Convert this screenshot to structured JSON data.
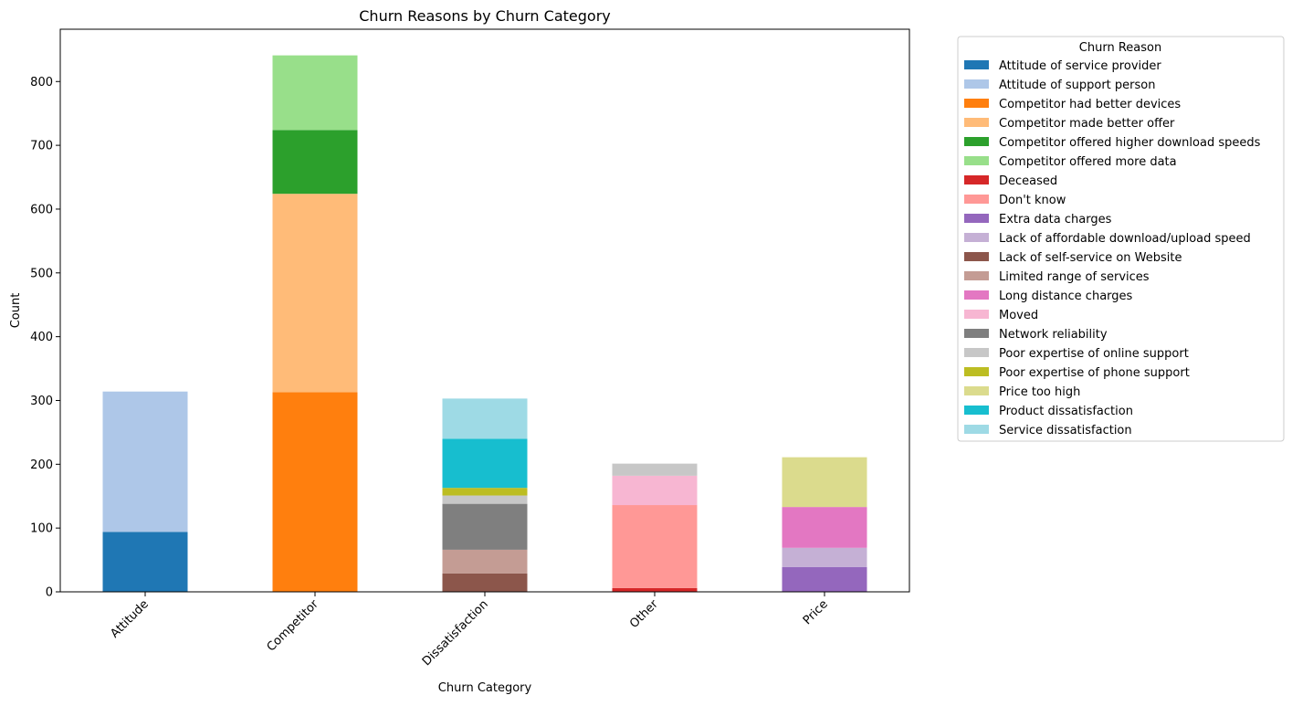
{
  "chart_data": {
    "type": "bar",
    "stacked": true,
    "title": "Churn Reasons by Churn Category",
    "xlabel": "Churn Category",
    "ylabel": "Count",
    "ylim": [
      0,
      882
    ],
    "yticks": [
      0,
      100,
      200,
      300,
      400,
      500,
      600,
      700,
      800
    ],
    "categories": [
      "Attitude",
      "Competitor",
      "Dissatisfaction",
      "Other",
      "Price"
    ],
    "legend": {
      "title": "Churn Reason",
      "placement": "outside-right"
    },
    "grid": false,
    "series": [
      {
        "name": "Attitude of service provider",
        "color": "#1f77b4",
        "values": [
          94,
          0,
          0,
          0,
          0
        ]
      },
      {
        "name": "Attitude of support person",
        "color": "#aec7e8",
        "values": [
          220,
          0,
          0,
          0,
          0
        ]
      },
      {
        "name": "Competitor had better devices",
        "color": "#ff7f0e",
        "values": [
          0,
          313,
          0,
          0,
          0
        ]
      },
      {
        "name": "Competitor made better offer",
        "color": "#ffbb78",
        "values": [
          0,
          311,
          0,
          0,
          0
        ]
      },
      {
        "name": "Competitor offered higher download speeds",
        "color": "#2ca02c",
        "values": [
          0,
          100,
          0,
          0,
          0
        ]
      },
      {
        "name": "Competitor offered more data",
        "color": "#98df8a",
        "values": [
          0,
          117,
          0,
          0,
          0
        ]
      },
      {
        "name": "Deceased",
        "color": "#d62728",
        "values": [
          0,
          0,
          0,
          6,
          0
        ]
      },
      {
        "name": "Don't know",
        "color": "#ff9896",
        "values": [
          0,
          0,
          0,
          130,
          0
        ]
      },
      {
        "name": "Extra data charges",
        "color": "#9467bd",
        "values": [
          0,
          0,
          0,
          0,
          39
        ]
      },
      {
        "name": "Lack of affordable download/upload speed",
        "color": "#c5b0d5",
        "values": [
          0,
          0,
          0,
          0,
          30
        ]
      },
      {
        "name": "Lack of self-service on Website",
        "color": "#8c564b",
        "values": [
          0,
          0,
          29,
          0,
          0
        ]
      },
      {
        "name": "Limited range of services",
        "color": "#c49c94",
        "values": [
          0,
          0,
          37,
          0,
          0
        ]
      },
      {
        "name": "Long distance charges",
        "color": "#e377c2",
        "values": [
          0,
          0,
          0,
          0,
          64
        ]
      },
      {
        "name": "Moved",
        "color": "#f7b6d2",
        "values": [
          0,
          0,
          0,
          46,
          0
        ]
      },
      {
        "name": "Network reliability",
        "color": "#7f7f7f",
        "values": [
          0,
          0,
          72,
          0,
          0
        ]
      },
      {
        "name": "Poor expertise of online support",
        "color": "#c7c7c7",
        "values": [
          0,
          0,
          13,
          19,
          0
        ]
      },
      {
        "name": "Poor expertise of phone support",
        "color": "#bcbd22",
        "values": [
          0,
          0,
          12,
          0,
          0
        ]
      },
      {
        "name": "Price too high",
        "color": "#dbdb8d",
        "values": [
          0,
          0,
          0,
          0,
          78
        ]
      },
      {
        "name": "Product dissatisfaction",
        "color": "#17becf",
        "values": [
          0,
          0,
          77,
          0,
          0
        ]
      },
      {
        "name": "Service dissatisfaction",
        "color": "#9edae5",
        "values": [
          0,
          0,
          63,
          0,
          0
        ]
      }
    ]
  }
}
